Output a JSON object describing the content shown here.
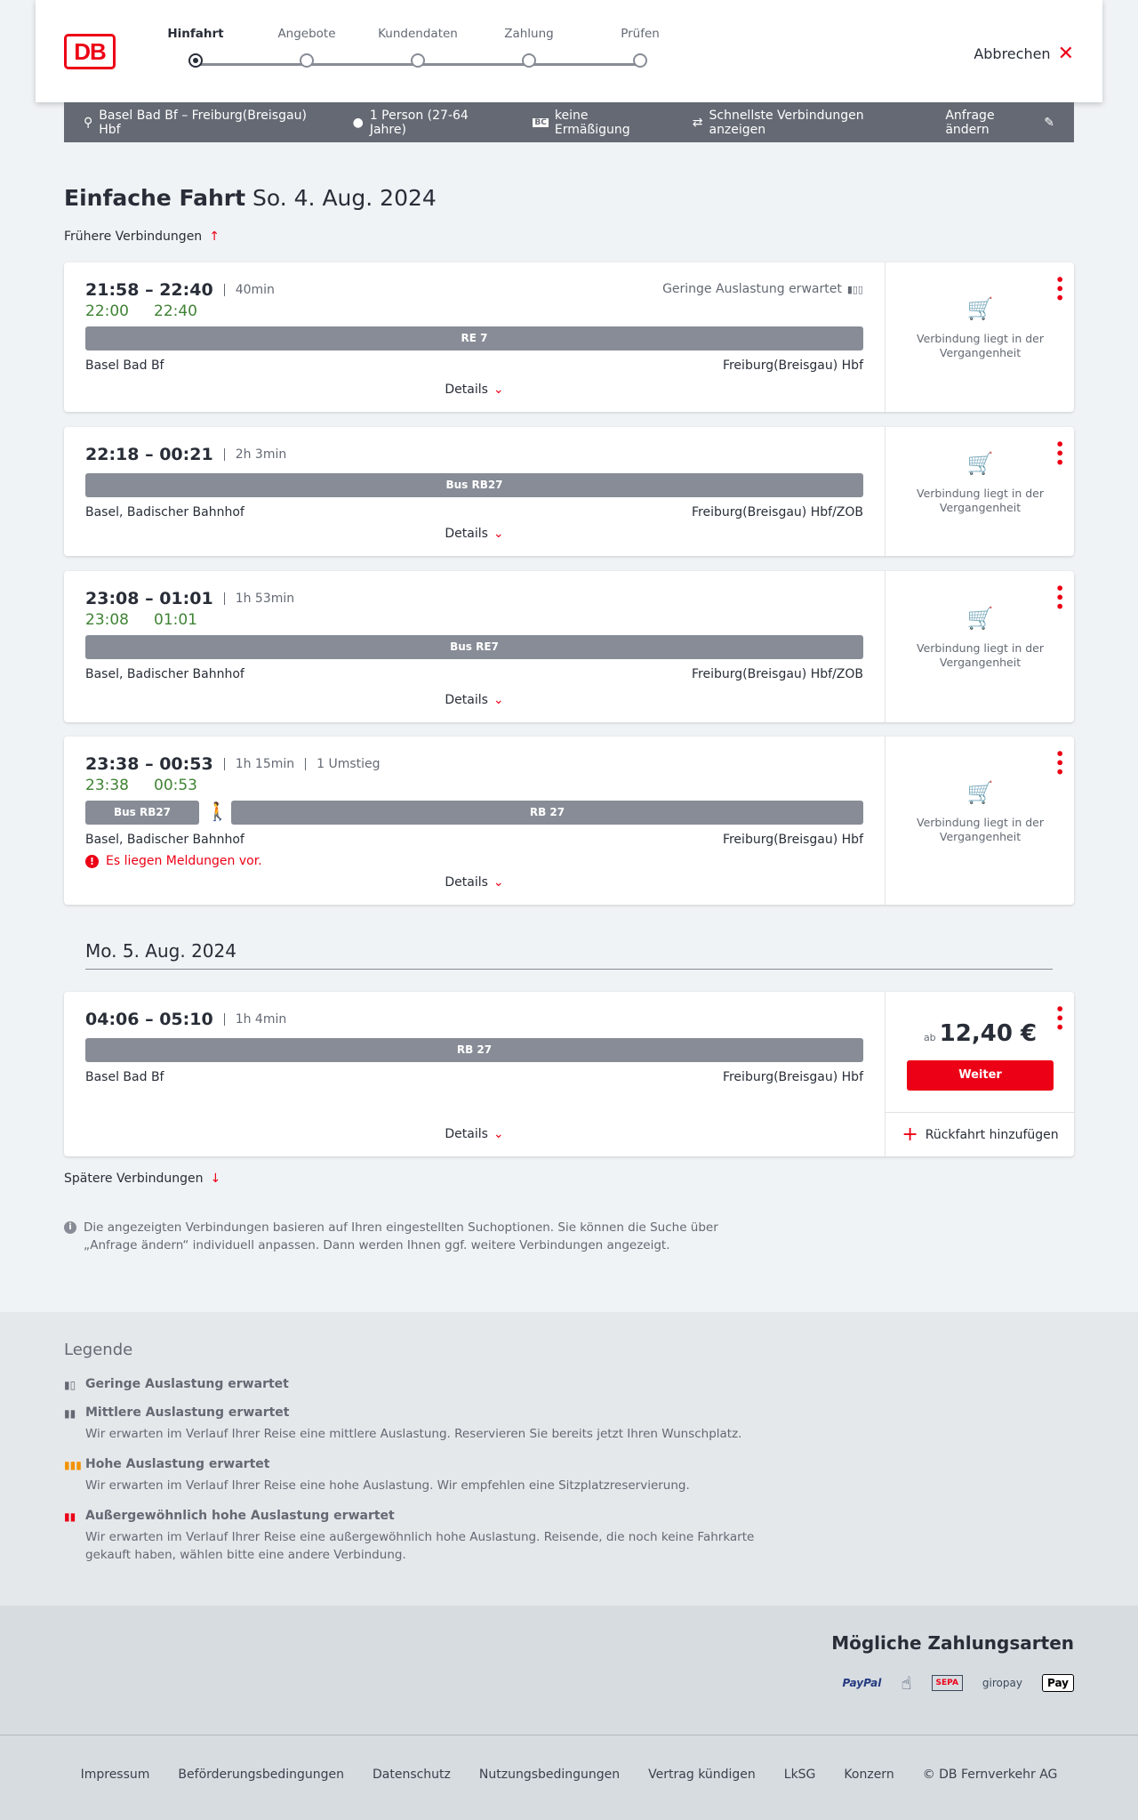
{
  "header": {
    "logo": "DB",
    "steps": [
      "Hinfahrt",
      "Angebote",
      "Kundendaten",
      "Zahlung",
      "Prüfen"
    ],
    "active_step": 0,
    "cancel": "Abbrechen"
  },
  "search": {
    "route": "Basel Bad Bf – Freiburg(Breisgau) Hbf",
    "travellers": "1 Person (27-64 Jahre)",
    "discount": "keine Ermäßigung",
    "fastest": "Schnellste Verbindungen anzeigen",
    "edit": "Anfrage ändern"
  },
  "title": {
    "type": "Einfache Fahrt",
    "date": "So. 4. Aug. 2024"
  },
  "earlier": "Frühere Verbindungen",
  "later": "Spätere Verbindungen",
  "date2": "Mo. 5. Aug. 2024",
  "details_label": "Details",
  "past_label": "Verbindung liegt in der Vergangenheit",
  "connections": [
    {
      "times": "21:58 – 22:40",
      "meta": [
        "40min"
      ],
      "realtime": [
        "22:00",
        "22:40"
      ],
      "load": "Geringe Auslastung erwartet",
      "trains": [
        "RE 7"
      ],
      "from": "Basel Bad Bf",
      "to": "Freiburg(Breisgau) Hbf"
    },
    {
      "times": "22:18 – 00:21",
      "meta": [
        "2h 3min"
      ],
      "trains": [
        "Bus RB27"
      ],
      "from": "Basel, Badischer Bahnhof",
      "to": "Freiburg(Breisgau) Hbf/ZOB"
    },
    {
      "times": "23:08 – 01:01",
      "meta": [
        "1h 53min"
      ],
      "realtime": [
        "23:08",
        "01:01"
      ],
      "trains": [
        "Bus RE7"
      ],
      "from": "Basel, Badischer Bahnhof",
      "to": "Freiburg(Breisgau) Hbf/ZOB"
    },
    {
      "times": "23:38 – 00:53",
      "meta": [
        "1h 15min",
        "1 Umstieg"
      ],
      "realtime": [
        "23:38",
        "00:53"
      ],
      "trains": [
        "Bus RB27",
        "RB 27"
      ],
      "from": "Basel, Badischer Bahnhof",
      "to": "Freiburg(Breisgau) Hbf",
      "message": "Es liegen Meldungen vor."
    },
    {
      "times": "04:06 – 05:10",
      "meta": [
        "1h 4min"
      ],
      "trains": [
        "RB 27"
      ],
      "from": "Basel Bad Bf",
      "to": "Freiburg(Breisgau) Hbf",
      "price_prefix": "ab",
      "price": "12,40 €",
      "button": "Weiter",
      "return": "Rückfahrt hinzufügen"
    }
  ],
  "info": "Die angezeigten Verbindungen basieren auf Ihren eingestellten Suchoptionen. Sie können die Suche über „Anfrage ändern“ individuell anpassen. Dann werden Ihnen ggf. weitere Verbindungen angezeigt.",
  "legend": {
    "title": "Legende",
    "items": [
      {
        "title": "Geringe Auslastung erwartet",
        "text": ""
      },
      {
        "title": "Mittlere Auslastung erwartet",
        "text": "Wir erwarten im Verlauf Ihrer Reise eine mittlere Auslastung. Reservieren Sie bereits jetzt Ihren Wunschplatz."
      },
      {
        "title": "Hohe Auslastung erwartet",
        "text": "Wir erwarten im Verlauf Ihrer Reise eine hohe Auslastung. Wir empfehlen eine Sitzplatzreservierung."
      },
      {
        "title": "Außergewöhnlich hohe Auslastung erwartet",
        "text": "Wir erwarten im Verlauf Ihrer Reise eine außergewöhnlich hohe Auslastung. Reisende, die noch keine Fahrkarte gekauft haben, wählen bitte eine andere Verbindung."
      }
    ]
  },
  "payment": {
    "title": "Mögliche Zahlungsarten",
    "methods": [
      "PayPal",
      "Kreditkarte",
      "SEPA",
      "giropay",
      "Pay"
    ]
  },
  "footer": [
    "Impressum",
    "Beförderungsbedingungen",
    "Datenschutz",
    "Nutzungsbedingungen",
    "Vertrag kündigen",
    "LkSG",
    "Konzern",
    "© DB Fernverkehr AG"
  ],
  "colors": {
    "brand": "#ec0016",
    "realtime": "#408335",
    "train": "#878c96"
  }
}
